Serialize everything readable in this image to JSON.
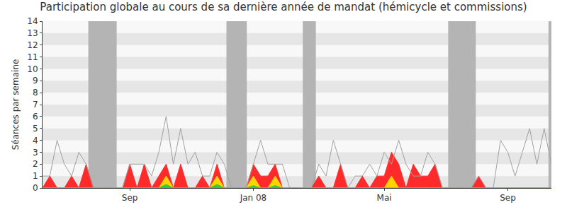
{
  "chart_data": {
    "type": "area",
    "title": "Participation globale au cours de sa dernière année de mandat (hémicycle et commissions)",
    "y_label": "Séances par semaine",
    "categories": [
      null,
      null,
      null,
      null,
      null,
      null,
      null,
      null,
      null,
      null,
      null,
      null,
      "Sep",
      null,
      null,
      null,
      null,
      null,
      null,
      null,
      null,
      null,
      null,
      null,
      null,
      null,
      null,
      null,
      null,
      "Jan 08",
      null,
      null,
      null,
      null,
      null,
      null,
      null,
      null,
      null,
      null,
      null,
      null,
      null,
      null,
      null,
      null,
      null,
      "Mai",
      null,
      null,
      null,
      null,
      null,
      null,
      null,
      null,
      null,
      null,
      null,
      null,
      null,
      null,
      null,
      null,
      "Sep",
      null,
      null,
      null,
      null,
      null,
      null
    ],
    "series": [
      {
        "type": "line",
        "color": "#a0a0a0",
        "values": [
          1,
          1,
          4,
          2,
          1,
          3,
          2,
          0,
          0,
          0,
          0,
          0,
          2,
          2,
          2,
          1,
          3,
          6,
          2,
          5,
          2,
          3,
          1,
          1,
          3,
          2,
          0,
          0,
          0,
          2,
          4,
          2,
          2,
          2,
          0,
          0,
          0,
          0,
          2,
          1,
          4,
          2,
          0,
          1,
          1,
          2,
          1,
          3,
          2,
          4,
          2,
          1,
          1,
          3,
          2,
          0,
          0,
          0,
          0,
          0,
          1,
          0,
          0,
          4,
          3,
          1,
          3,
          5,
          2,
          5,
          2
        ]
      },
      {
        "type": "area",
        "color": "#ff2a2a",
        "values": [
          0,
          1,
          0,
          0,
          1,
          0,
          2,
          0,
          0,
          0,
          0,
          0,
          2,
          0,
          2,
          0,
          1,
          2,
          0,
          2,
          0,
          0,
          1,
          0,
          2,
          0,
          0,
          0,
          0,
          2,
          1,
          1,
          2,
          0,
          0,
          0,
          0,
          0,
          1,
          0,
          0,
          2,
          0,
          0,
          1,
          0,
          1,
          1,
          3,
          2,
          0,
          2,
          1,
          1,
          2,
          0,
          0,
          0,
          0,
          0,
          1,
          0,
          0,
          0,
          0,
          0,
          0,
          0,
          0,
          0,
          0
        ]
      },
      {
        "type": "area",
        "color": "#ffd400",
        "values": [
          0,
          0,
          0,
          0,
          0,
          0,
          0,
          0,
          0,
          0,
          0,
          0,
          0,
          0,
          0,
          0,
          0,
          1,
          0,
          0,
          0,
          0,
          0,
          0,
          1,
          0,
          0,
          0,
          0,
          1,
          0,
          0,
          1,
          0,
          0,
          0,
          0,
          0,
          0,
          0,
          0,
          0,
          0,
          0,
          0,
          0,
          0,
          0,
          1,
          0,
          0,
          0,
          0,
          0,
          0,
          0,
          0,
          0,
          0,
          0,
          0,
          0,
          0,
          0,
          0,
          0,
          0,
          0,
          0,
          0,
          0
        ]
      },
      {
        "type": "area",
        "color": "#33cc33",
        "values": [
          0,
          0,
          0,
          0,
          0,
          0,
          0,
          0,
          0,
          0,
          0,
          0,
          0,
          0,
          0,
          0,
          0,
          0.3,
          0,
          0,
          0,
          0,
          0,
          0,
          0.3,
          0,
          0,
          0,
          0,
          0.2,
          0,
          0,
          0.2,
          0,
          0,
          0,
          0,
          0,
          0,
          0,
          0,
          0,
          0,
          0,
          0,
          0,
          0,
          0,
          0,
          0,
          0,
          0,
          0,
          0,
          0,
          0,
          0,
          0,
          0,
          0,
          0,
          0,
          0,
          0,
          0,
          0,
          0,
          0,
          0,
          0,
          0
        ]
      }
    ],
    "shaded_ranges": [
      [
        6.3,
        10.2
      ],
      [
        25.3,
        28.1
      ],
      [
        35.8,
        37.6
      ],
      [
        55.8,
        59.6
      ],
      [
        69.6,
        70
      ]
    ],
    "ylim": [
      0,
      14
    ],
    "yticks": [
      0,
      1,
      2,
      3,
      4,
      5,
      6,
      7,
      8,
      9,
      10,
      11,
      12,
      13,
      14
    ],
    "grid": true,
    "stacked": false
  }
}
